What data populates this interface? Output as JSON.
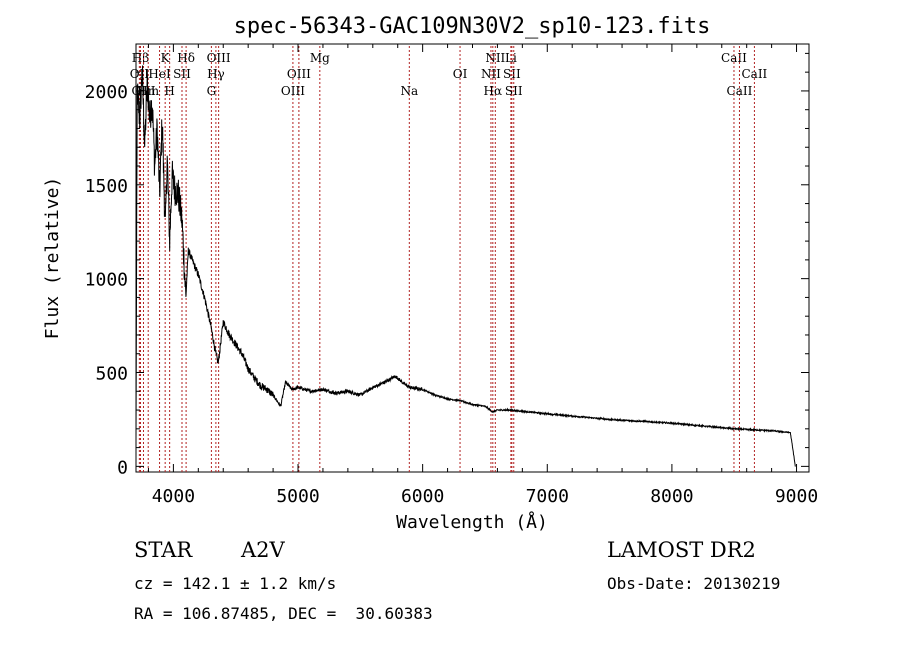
{
  "chart_data": {
    "type": "line",
    "title": "spec-56343-GAC109N30V2_sp10-123.fits",
    "xlabel": "Wavelength (Å)",
    "ylabel": "Flux (relative)",
    "xlim": [
      3700,
      9100
    ],
    "ylim": [
      -30,
      2250
    ],
    "x_ticks": [
      4000,
      5000,
      6000,
      7000,
      8000,
      9000
    ],
    "y_ticks": [
      0,
      500,
      1000,
      1500,
      2000
    ],
    "x_tick_labels": [
      "4000",
      "5000",
      "6000",
      "7000",
      "8000",
      "9000"
    ],
    "y_tick_labels": [
      "0",
      "500",
      "1000",
      "1500",
      "2000"
    ],
    "grid": false,
    "spectrum_color": "#000000",
    "line_marker_color": "#b22222",
    "spectrum_key_points": {
      "x": [
        3700,
        3710,
        3730,
        3750,
        3770,
        3790,
        3810,
        3830,
        3850,
        3870,
        3890,
        3910,
        3935,
        3950,
        3970,
        3990,
        4010,
        4040,
        4070,
        4100,
        4120,
        4150,
        4200,
        4250,
        4300,
        4340,
        4360,
        4400,
        4450,
        4500,
        4550,
        4600,
        4650,
        4700,
        4750,
        4800,
        4861,
        4900,
        4950,
        5000,
        5100,
        5200,
        5300,
        5400,
        5500,
        5600,
        5700,
        5780,
        5800,
        5850,
        5900,
        6000,
        6100,
        6200,
        6300,
        6400,
        6500,
        6563,
        6600,
        6700,
        7000,
        7500,
        8000,
        8500,
        8800,
        8950,
        8980,
        8990
      ],
      "y": [
        120,
        2000,
        1850,
        2100,
        1700,
        2050,
        1850,
        1950,
        1600,
        1800,
        1450,
        1850,
        1250,
        1650,
        1200,
        1550,
        1480,
        1450,
        1300,
        900,
        1150,
        1100,
        1020,
        900,
        750,
        600,
        550,
        770,
        700,
        650,
        600,
        520,
        470,
        430,
        410,
        380,
        320,
        450,
        410,
        420,
        400,
        410,
        390,
        400,
        380,
        420,
        450,
        480,
        470,
        440,
        420,
        410,
        380,
        360,
        350,
        330,
        320,
        290,
        300,
        300,
        280,
        250,
        230,
        200,
        190,
        180,
        50,
        0
      ],
      "noise_note": null
    },
    "spectral_lines": [
      {
        "label": "Hβ",
        "x": 3736,
        "row": 0
      },
      {
        "label": "OII",
        "x": 3727,
        "row": 1
      },
      {
        "label": "OIII",
        "x": 3760,
        "row": 2
      },
      {
        "label": "K",
        "x": 3934,
        "row": 0
      },
      {
        "label": "HeI",
        "x": 3889,
        "row": 1
      },
      {
        "label": "Hm",
        "x": 3798,
        "row": 2
      },
      {
        "label": "Hδ",
        "x": 4102,
        "row": 0
      },
      {
        "label": "SII",
        "x": 4069,
        "row": 1
      },
      {
        "label": "H",
        "x": 3970,
        "row": 2
      },
      {
        "label": "OIII",
        "x": 4363,
        "row": 0
      },
      {
        "label": "Hγ",
        "x": 4341,
        "row": 1
      },
      {
        "label": "G",
        "x": 4305,
        "row": 2
      },
      {
        "label": "Mg",
        "x": 5175,
        "row": 0
      },
      {
        "label": "OIII",
        "x": 5007,
        "row": 1
      },
      {
        "label": "OIII",
        "x": 4959,
        "row": 2
      },
      {
        "label": "Na",
        "x": 5893,
        "row": 2
      },
      {
        "label": "OI",
        "x": 6300,
        "row": 1
      },
      {
        "label": "NII",
        "x": 6583,
        "row": 0
      },
      {
        "label": "Li",
        "x": 6708,
        "row": 0
      },
      {
        "label": "NII",
        "x": 6548,
        "row": 1
      },
      {
        "label": "SII",
        "x": 6716,
        "row": 1
      },
      {
        "label": "Hα",
        "x": 6563,
        "row": 2
      },
      {
        "label": "SII",
        "x": 6731,
        "row": 2
      },
      {
        "label": "CaII",
        "x": 8498,
        "row": 0
      },
      {
        "label": "CaII",
        "x": 8662,
        "row": 1
      },
      {
        "label": "CaII",
        "x": 8542,
        "row": 2
      }
    ]
  },
  "info": {
    "object_type": "STAR",
    "subclass": "A2V",
    "survey": "LAMOST DR2",
    "cz": "cz = 142.1 ± 1.2 km/s",
    "obs_date": "Obs-Date: 20130219",
    "coords": "RA = 106.87485, DEC =  30.60383"
  }
}
